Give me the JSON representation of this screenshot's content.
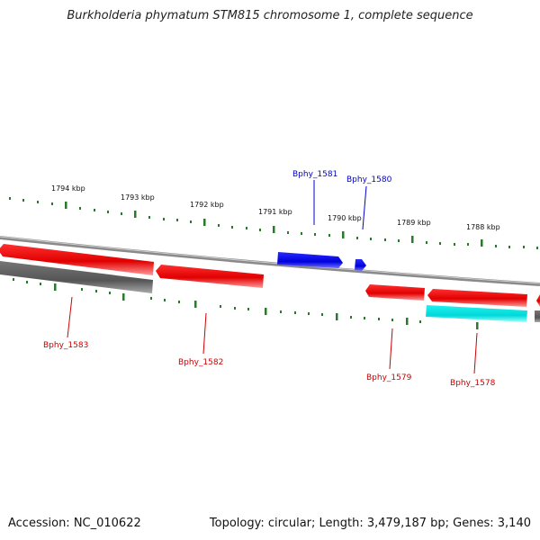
{
  "title": "Burkholderia phymatum STM815 chromosome 1, complete sequence",
  "footer": {
    "accession": "Accession: NC_010622",
    "summary": "Topology: circular; Length: 3,479,187 bp; Genes: 3,140"
  },
  "colors": {
    "forward_gene": "#0000ee",
    "reverse_gene": "#ee0000",
    "rna_gene": "#00e5e5",
    "other_feature": "#666666",
    "backbone": "#888888",
    "ticks": "#2a7a2a",
    "gene_label_forward": "#0000cc",
    "gene_label_reverse": "#cc0000"
  },
  "ruler_labels": [
    {
      "text": "1794 kbp"
    },
    {
      "text": "1793 kbp"
    },
    {
      "text": "1792 kbp"
    },
    {
      "text": "1791 kbp"
    },
    {
      "text": "1790 kbp"
    },
    {
      "text": "1789 kbp"
    },
    {
      "text": "1788 kbp"
    }
  ],
  "genes": [
    {
      "name": "Bphy_1583",
      "strand": "reverse"
    },
    {
      "name": "Bphy_1582",
      "strand": "reverse"
    },
    {
      "name": "Bphy_1581",
      "strand": "forward"
    },
    {
      "name": "Bphy_1580",
      "strand": "forward"
    },
    {
      "name": "Bphy_1579",
      "strand": "reverse"
    },
    {
      "name": "Bphy_1578",
      "strand": "reverse"
    }
  ]
}
